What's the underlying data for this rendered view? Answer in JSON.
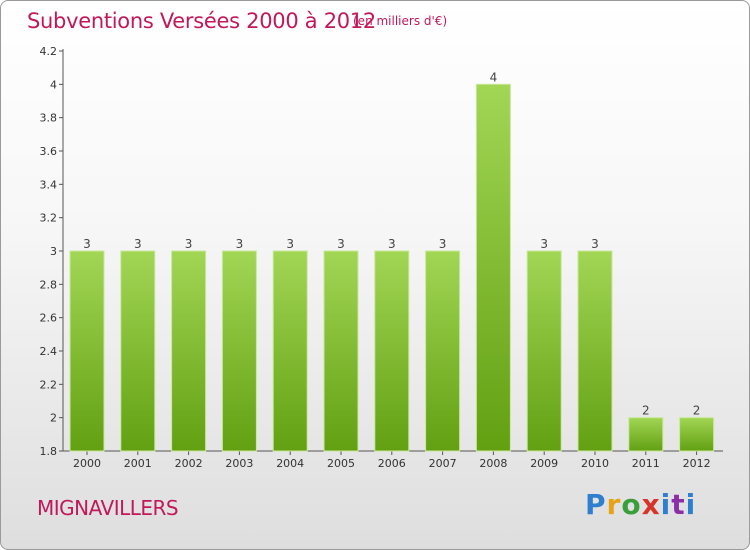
{
  "header": {
    "title": "Subventions Versées 2000 à 2012",
    "unit_note": "(en milliers d'€)"
  },
  "footer": {
    "commune": "MIGNAVILLERS",
    "logo_text": "Proxiti"
  },
  "colors": {
    "accent": "#c2185b",
    "bar_light": "#a2d655",
    "bar_dark": "#62a012"
  },
  "chart_data": {
    "type": "bar",
    "title": "Subventions Versées 2000 à 2012",
    "subtitle": "(en milliers d'€)",
    "xlabel": "",
    "ylabel": "",
    "categories": [
      "2000",
      "2001",
      "2002",
      "2003",
      "2004",
      "2005",
      "2006",
      "2007",
      "2008",
      "2009",
      "2010",
      "2011",
      "2012"
    ],
    "values": [
      3,
      3,
      3,
      3,
      3,
      3,
      3,
      3,
      4,
      3,
      3,
      2,
      2
    ],
    "data_labels": [
      "3",
      "3",
      "3",
      "3",
      "3",
      "3",
      "3",
      "3",
      "4",
      "3",
      "3",
      "2",
      "2"
    ],
    "ylim": [
      1.8,
      4.2
    ],
    "yticks": [
      1.8,
      2,
      2.2,
      2.4,
      2.6,
      2.8,
      3,
      3.2,
      3.4,
      3.6,
      3.8,
      4,
      4.2
    ],
    "ytick_labels": [
      "1.8",
      "2",
      "2.2",
      "2.4",
      "2.6",
      "2.8",
      "3",
      "3.2",
      "3.4",
      "3.6",
      "3.8",
      "4",
      "4.2"
    ],
    "grid": false,
    "legend": "none"
  }
}
